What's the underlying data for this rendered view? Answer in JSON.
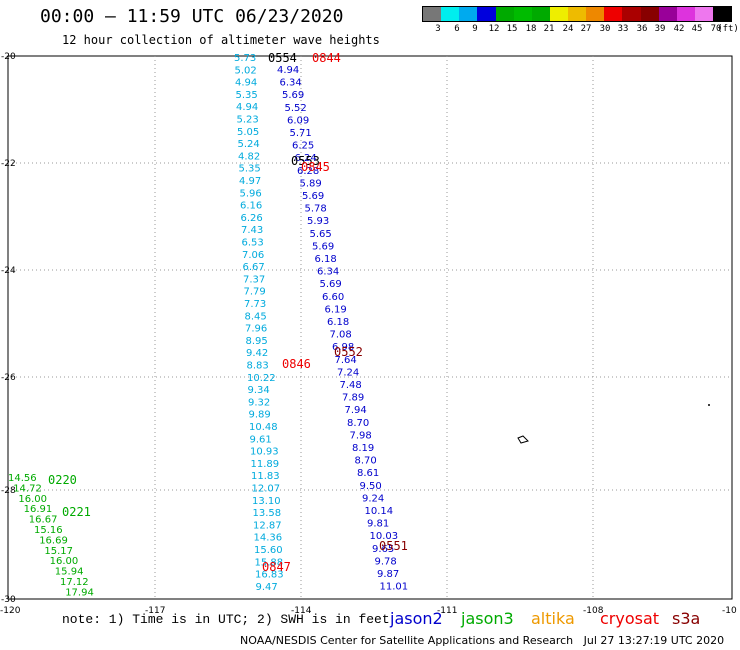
{
  "header": {
    "title": "00:00 – 11:59 UTC 06/23/2020",
    "subtitle": "12 hour collection of altimeter wave heights"
  },
  "legend": {
    "colors": [
      "#777777",
      "#00eeee",
      "#00aaee",
      "#0000dd",
      "#00aa00",
      "#00bb00",
      "#00aa00",
      "#eeee00",
      "#eebb00",
      "#ee8800",
      "#ee0000",
      "#aa0000",
      "#880000",
      "#990099",
      "#dd33dd",
      "#ee77ee",
      "#000000"
    ],
    "labels": [
      "3",
      "6",
      "9",
      "12",
      "15",
      "18",
      "21",
      "24",
      "27",
      "30",
      "33",
      "36",
      "39",
      "42",
      "45",
      "70",
      "(ft)"
    ]
  },
  "axes": {
    "lat_ticks": [
      "-20",
      "-22",
      "-24",
      "-26",
      "-28",
      "-30"
    ],
    "lon_ticks": [
      "-120",
      "-117",
      "-114",
      "-111",
      "-108",
      "-10"
    ]
  },
  "map_data": {
    "region": {
      "lat": [
        -30,
        -20
      ],
      "lon": [
        -120,
        -105
      ]
    },
    "passes": [
      {
        "label": "0554",
        "color": "#000000"
      },
      {
        "label": "0844",
        "color": "#ee0000"
      },
      {
        "label": "0553",
        "color": "#000000"
      },
      {
        "label": "0845",
        "color": "#ee0000"
      },
      {
        "label": "0552",
        "color": "#880000"
      },
      {
        "label": "0846",
        "color": "#ee0000"
      },
      {
        "label": "0220",
        "color": "#00aa00"
      },
      {
        "label": "0221",
        "color": "#00aa00"
      },
      {
        "label": "0551",
        "color": "#880000"
      },
      {
        "label": "0847",
        "color": "#ee0000"
      }
    ],
    "tracks": [
      {
        "color": "#00aadd",
        "values": [
          "5.73",
          "5.02",
          "4.94",
          "5.35",
          "4.94",
          "5.23",
          "5.05",
          "5.24",
          "4.82",
          "5.35",
          "4.97",
          "5.96",
          "6.16",
          "6.26",
          "7.43",
          "6.53",
          "7.06",
          "6.67",
          "7.37",
          "7.79",
          "7.73",
          "8.45",
          "7.96",
          "8.95",
          "9.42",
          "8.83",
          "10.22",
          "9.34",
          "9.32",
          "9.89",
          "10.48",
          "9.61",
          "10.93",
          "11.89",
          "11.83",
          "12.07",
          "13.10",
          "13.58",
          "12.87",
          "14.36",
          "15.60",
          "15.88",
          "16.83",
          "9.47"
        ]
      },
      {
        "color": "#0000cc",
        "values": [
          "4.94",
          "6.34",
          "5.69",
          "5.52",
          "6.09",
          "5.71",
          "6.25",
          "6.24",
          "6.28",
          "5.89",
          "5.69",
          "5.78",
          "5.93",
          "5.65",
          "5.69",
          "6.18",
          "6.34",
          "5.69",
          "6.60",
          "6.19",
          "6.18",
          "7.08",
          "6.98",
          "7.64",
          "7.24",
          "7.48",
          "7.89",
          "7.94",
          "8.70",
          "7.98",
          "8.19",
          "8.70",
          "8.61",
          "9.50",
          "9.24",
          "10.14",
          "9.81",
          "10.03",
          "9.65",
          "9.78",
          "9.87",
          "11.01"
        ]
      },
      {
        "color": "#00aa00",
        "values": [
          "14.56",
          "14.72",
          "16.00",
          "16.91",
          "16.67",
          "15.16",
          "16.69",
          "15.17",
          "16.00",
          "15.94",
          "17.12",
          "17.94"
        ]
      }
    ],
    "island_marks": [
      "dot",
      "outline"
    ]
  },
  "footer": {
    "note": "note: 1) Time is in UTC; 2) SWH is in feet",
    "satellites": [
      {
        "name": "jason2",
        "color": "#0000cc"
      },
      {
        "name": "jason3",
        "color": "#00aa00"
      },
      {
        "name": "altika",
        "color": "#ee9900"
      },
      {
        "name": "cryosat",
        "color": "#ee0000"
      },
      {
        "name": "s3a",
        "color": "#880000"
      }
    ],
    "credit": "NOAA/NESDIS Center for Satellite Applications and Research   Jul 27 13:27:19 UTC 2020"
  }
}
